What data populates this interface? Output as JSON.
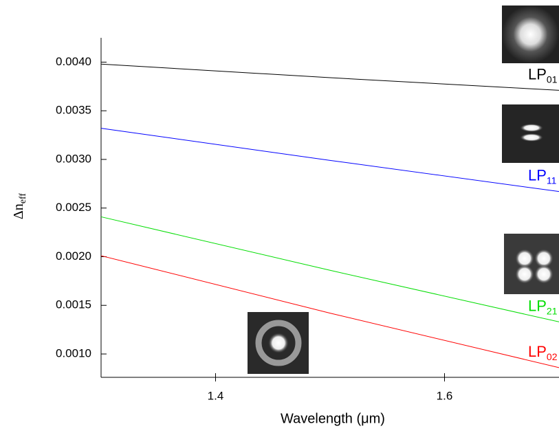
{
  "chart_data": {
    "type": "line",
    "xlabel": "Wavelength (μm)",
    "ylabel": "Δn",
    "ylabel_sub": "eff",
    "xlim": [
      1.3,
      1.7
    ],
    "xticks": [
      1.4,
      1.6
    ],
    "ylim": [
      0.00076,
      0.00425
    ],
    "yticks": [
      {
        "value": 0.001,
        "label": "0.0010"
      },
      {
        "value": 0.0015,
        "label": "0.0015"
      },
      {
        "value": 0.002,
        "label": "0.0020"
      },
      {
        "value": 0.0025,
        "label": "0.0025"
      },
      {
        "value": 0.003,
        "label": "0.0030"
      },
      {
        "value": 0.0035,
        "label": "0.0035"
      },
      {
        "value": 0.004,
        "label": "0.0040"
      }
    ],
    "x": [
      1.3,
      1.5,
      1.7
    ],
    "series": [
      {
        "name": "LP",
        "subscript": "01",
        "color": "#000000",
        "values": [
          0.00398,
          0.00384,
          0.00371
        ]
      },
      {
        "name": "LP",
        "subscript": "11",
        "color": "#0000ff",
        "values": [
          0.00332,
          0.00299,
          0.00267
        ]
      },
      {
        "name": "LP",
        "subscript": "21",
        "color": "#00dd00",
        "values": [
          0.00241,
          0.00186,
          0.00133
        ]
      },
      {
        "name": "LP",
        "subscript": "02",
        "color": "#ff0000",
        "values": [
          0.00201,
          0.00142,
          0.00086
        ]
      }
    ]
  }
}
